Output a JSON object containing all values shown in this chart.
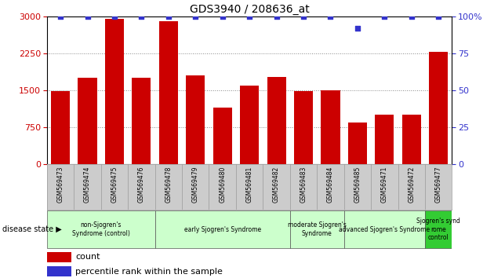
{
  "title": "GDS3940 / 208636_at",
  "samples": [
    "GSM569473",
    "GSM569474",
    "GSM569475",
    "GSM569476",
    "GSM569478",
    "GSM569479",
    "GSM569480",
    "GSM569481",
    "GSM569482",
    "GSM569483",
    "GSM569484",
    "GSM569485",
    "GSM569471",
    "GSM569472",
    "GSM569477"
  ],
  "counts": [
    1480,
    1750,
    2950,
    1750,
    2900,
    1800,
    1150,
    1600,
    1780,
    1490,
    1500,
    850,
    1000,
    1000,
    2280
  ],
  "percentile_ranks": [
    100,
    100,
    100,
    100,
    100,
    100,
    100,
    100,
    100,
    100,
    100,
    92,
    100,
    100,
    100
  ],
  "ylim_left": [
    0,
    3000
  ],
  "ylim_right": [
    0,
    100
  ],
  "yticks_left": [
    0,
    750,
    1500,
    2250,
    3000
  ],
  "yticks_right": [
    0,
    25,
    50,
    75,
    100
  ],
  "bar_color": "#cc0000",
  "dot_color": "#3333cc",
  "groups": [
    {
      "label": "non-Sjogren's\nSyndrome (control)",
      "start": 0,
      "end": 4,
      "color": "#ccffcc"
    },
    {
      "label": "early Sjogren's Syndrome",
      "start": 4,
      "end": 9,
      "color": "#ccffcc"
    },
    {
      "label": "moderate Sjogren's\nSyndrome",
      "start": 9,
      "end": 11,
      "color": "#ccffcc"
    },
    {
      "label": "advanced Sjogren's Syndrome",
      "start": 11,
      "end": 14,
      "color": "#ccffcc"
    },
    {
      "label": "Sjogren's synd\nrome\ncontrol",
      "start": 14,
      "end": 15,
      "color": "#33cc33"
    }
  ],
  "disease_state_label": "disease state",
  "legend_count_label": "count",
  "legend_percentile_label": "percentile rank within the sample",
  "bg_color": "#ffffff",
  "plot_bg_color": "#ffffff",
  "tick_label_color_left": "#cc0000",
  "tick_label_color_right": "#3333cc",
  "grid_color": "#888888",
  "bar_width": 0.7,
  "sample_box_color": "#cccccc",
  "sample_box_edge": "#999999"
}
